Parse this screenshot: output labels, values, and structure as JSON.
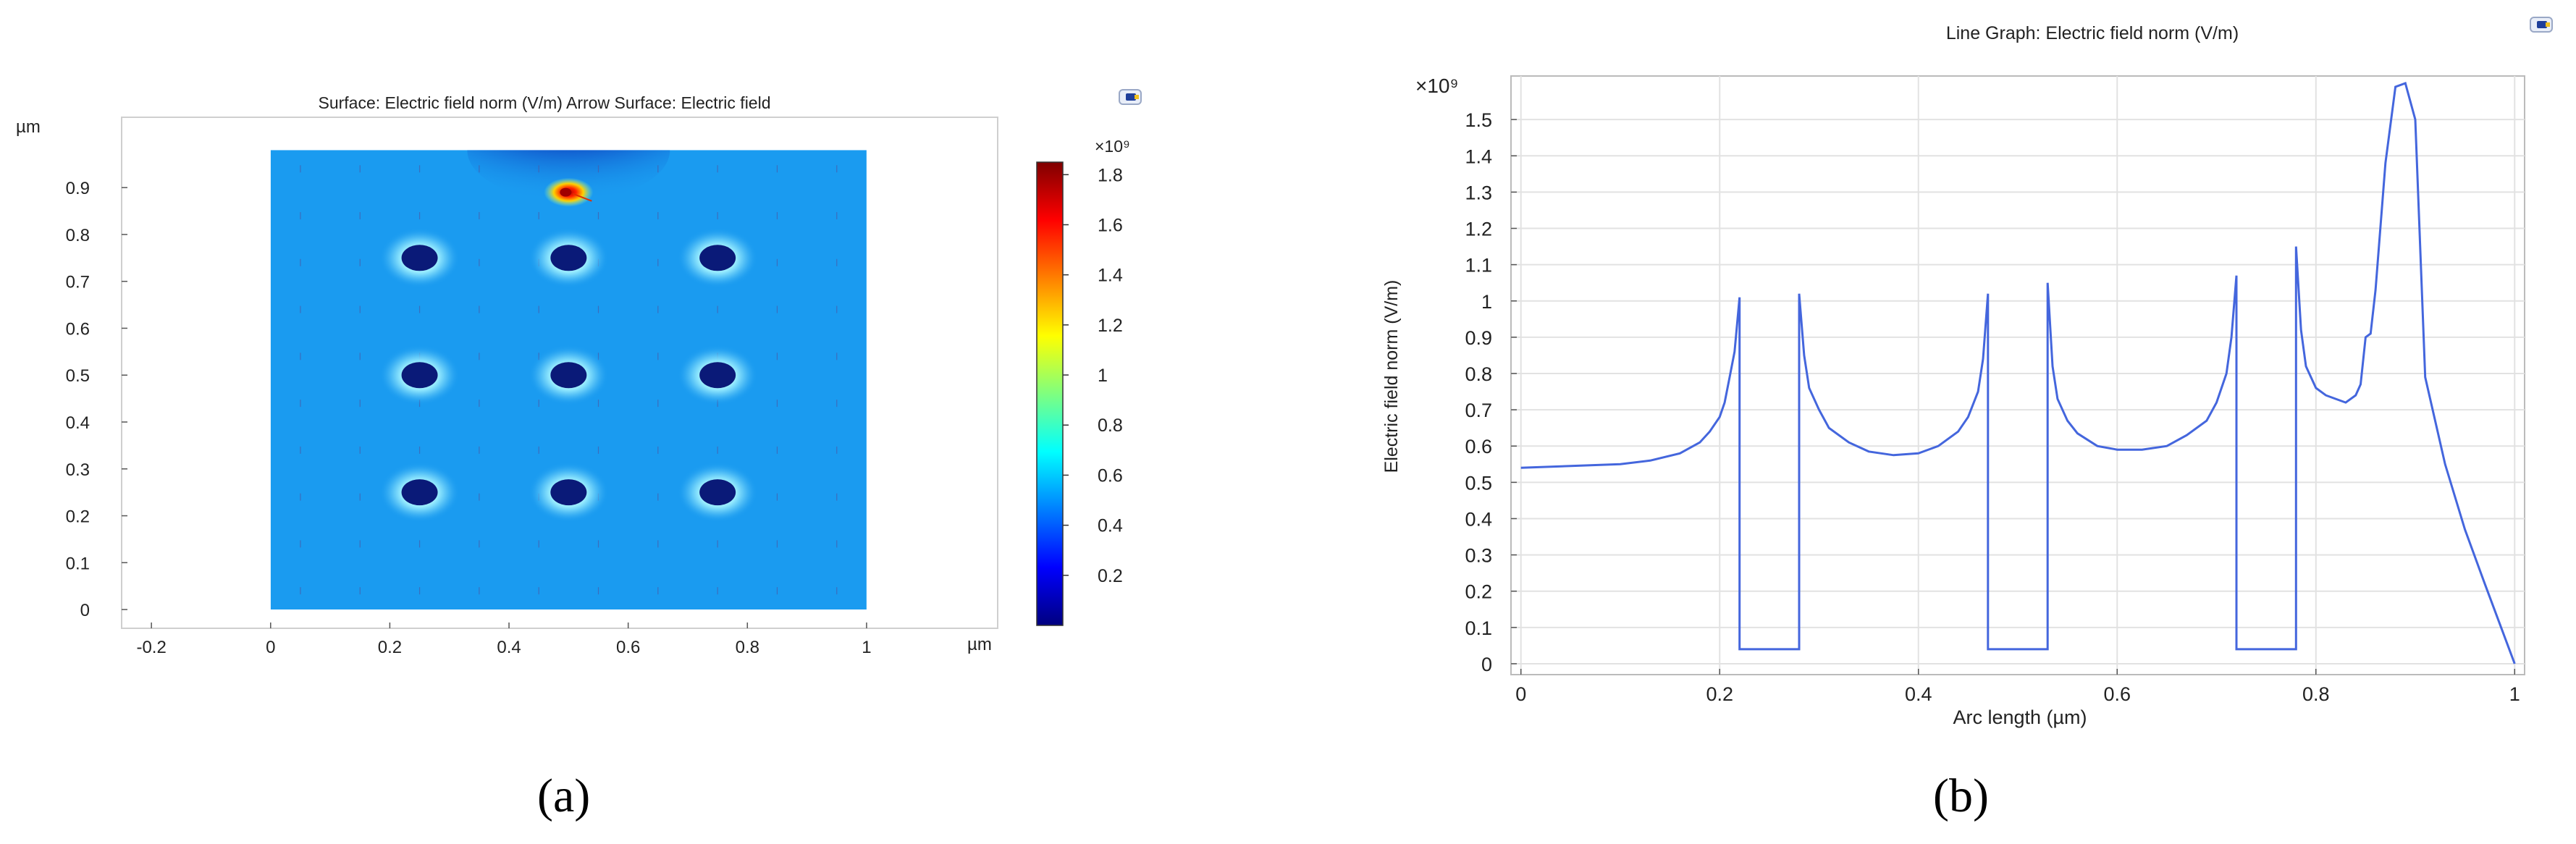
{
  "chart_data": [
    {
      "panel": "(a)",
      "type": "heatmap",
      "title": "Surface: Electric field norm (V/m)  Arrow Surface: Electric field",
      "x_unit": "µm",
      "y_unit": "µm",
      "xlim": [
        -0.25,
        1.22
      ],
      "ylim": [
        -0.04,
        1.05
      ],
      "x_ticks": [
        "-0.2",
        "0",
        "0.2",
        "0.4",
        "0.6",
        "0.8",
        "1"
      ],
      "x_tick_values": [
        -0.2,
        0,
        0.2,
        0.4,
        0.6,
        0.8,
        1.0
      ],
      "y_ticks": [
        "0",
        "0.1",
        "0.2",
        "0.3",
        "0.4",
        "0.5",
        "0.6",
        "0.7",
        "0.8",
        "0.9"
      ],
      "y_tick_values": [
        0,
        0.1,
        0.2,
        0.3,
        0.4,
        0.5,
        0.6,
        0.7,
        0.8,
        0.9
      ],
      "domain": {
        "x": [
          0,
          1
        ],
        "y": [
          0,
          0.98
        ]
      },
      "background_field_value": 0.55,
      "holes": [
        {
          "x": 0.25,
          "y": 0.25
        },
        {
          "x": 0.5,
          "y": 0.25
        },
        {
          "x": 0.75,
          "y": 0.25
        },
        {
          "x": 0.25,
          "y": 0.5
        },
        {
          "x": 0.5,
          "y": 0.5
        },
        {
          "x": 0.75,
          "y": 0.5
        },
        {
          "x": 0.25,
          "y": 0.75
        },
        {
          "x": 0.5,
          "y": 0.75
        },
        {
          "x": 0.75,
          "y": 0.75
        }
      ],
      "hotspot": {
        "x": 0.5,
        "y": 0.89,
        "value": 1.8
      },
      "colorbar": {
        "exponent_label": "×10⁹",
        "range": [
          0,
          1.85
        ],
        "ticks": [
          "1.8",
          "1.6",
          "1.4",
          "1.2",
          "1",
          "0.8",
          "0.6",
          "0.4",
          "0.2"
        ],
        "tick_values": [
          1.8,
          1.6,
          1.4,
          1.2,
          1.0,
          0.8,
          0.6,
          0.4,
          0.2
        ],
        "colors": [
          "#00007f",
          "#0000ff",
          "#007fff",
          "#00ffff",
          "#7fff7f",
          "#ffff00",
          "#ff7f00",
          "#ff0000",
          "#7f0000"
        ]
      },
      "field_colors": {
        "background": "#1a9bf0",
        "hole": "#0a1a78",
        "glow": "#bff5ff",
        "dark_top": "#0a2f9a"
      }
    },
    {
      "panel": "(b)",
      "type": "line",
      "title": "Line Graph: Electric field norm (V/m)",
      "xlabel": "Arc length (µm)",
      "ylabel": "Electric field norm (V/m)",
      "y_exponent_label": "×10⁹",
      "xlim": [
        -0.01,
        1.01
      ],
      "ylim": [
        -0.03,
        1.62
      ],
      "x_ticks": [
        "0",
        "0.2",
        "0.4",
        "0.6",
        "0.8",
        "1"
      ],
      "x_tick_values": [
        0,
        0.2,
        0.4,
        0.6,
        0.8,
        1.0
      ],
      "y_ticks": [
        "0",
        "0.1",
        "0.2",
        "0.3",
        "0.4",
        "0.5",
        "0.6",
        "0.7",
        "0.8",
        "0.9",
        "1",
        "1.1",
        "1.2",
        "1.3",
        "1.4",
        "1.5"
      ],
      "y_tick_values": [
        0,
        0.1,
        0.2,
        0.3,
        0.4,
        0.5,
        0.6,
        0.7,
        0.8,
        0.9,
        1.0,
        1.1,
        1.2,
        1.3,
        1.4,
        1.5
      ],
      "grid": true,
      "line_color": "#4466dd",
      "series": [
        {
          "x": [
            0,
            0.05,
            0.1,
            0.13,
            0.16,
            0.18,
            0.19,
            0.2,
            0.205,
            0.21,
            0.215,
            0.22,
            0.22,
            0.28,
            0.28,
            0.285,
            0.29,
            0.3,
            0.31,
            0.33,
            0.35,
            0.375,
            0.4,
            0.42,
            0.44,
            0.45,
            0.46,
            0.465,
            0.47,
            0.47,
            0.53,
            0.53,
            0.535,
            0.54,
            0.55,
            0.56,
            0.58,
            0.6,
            0.625,
            0.65,
            0.67,
            0.69,
            0.7,
            0.71,
            0.715,
            0.72,
            0.72,
            0.78,
            0.78,
            0.785,
            0.79,
            0.8,
            0.81,
            0.82,
            0.83,
            0.84,
            0.845,
            0.85,
            0.855,
            0.86,
            0.87,
            0.88,
            0.89,
            0.9,
            0.91,
            0.93,
            0.95,
            0.97,
            1.0
          ],
          "y": [
            0.54,
            0.545,
            0.55,
            0.56,
            0.58,
            0.61,
            0.64,
            0.68,
            0.72,
            0.79,
            0.86,
            1.01,
            0.04,
            0.04,
            1.02,
            0.85,
            0.76,
            0.7,
            0.65,
            0.61,
            0.585,
            0.575,
            0.58,
            0.6,
            0.64,
            0.68,
            0.75,
            0.84,
            1.02,
            0.04,
            0.04,
            1.05,
            0.82,
            0.73,
            0.67,
            0.635,
            0.6,
            0.59,
            0.59,
            0.6,
            0.63,
            0.67,
            0.72,
            0.8,
            0.9,
            1.07,
            0.04,
            0.04,
            1.15,
            0.92,
            0.82,
            0.76,
            0.74,
            0.73,
            0.72,
            0.74,
            0.77,
            0.9,
            0.91,
            1.03,
            1.38,
            1.59,
            1.6,
            1.5,
            0.79,
            0.55,
            0.37,
            0.22,
            0.0
          ]
        }
      ]
    }
  ],
  "labels": {
    "a": "(a)",
    "b": "(b)"
  }
}
